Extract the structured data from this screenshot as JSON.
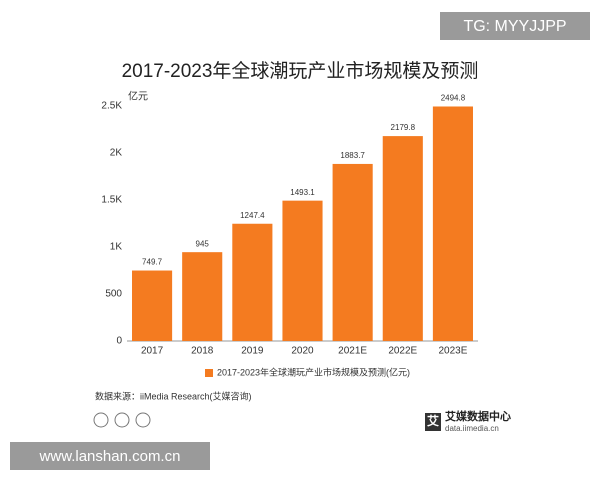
{
  "chart_data": {
    "type": "bar",
    "title": "2017-2023年全球潮玩产业市场规模及预测",
    "y_unit": "亿元",
    "categories": [
      "2017",
      "2018",
      "2019",
      "2020",
      "2021E",
      "2022E",
      "2023E"
    ],
    "series": [
      {
        "name": "2017-2023年全球潮玩产业市场规模及预测(亿元)",
        "color": "#f47b20",
        "values": [
          749.7,
          945,
          1247.4,
          1493.1,
          1883.7,
          2179.8,
          2494.8
        ]
      }
    ],
    "ylim": [
      0,
      2500
    ],
    "yticks": [
      0,
      500,
      {
        "value": 1000,
        "label": "1K"
      },
      {
        "value": 1500,
        "label": "1.5K"
      },
      {
        "value": 2000,
        "label": "2K"
      },
      {
        "value": 2500,
        "label": "2.5K"
      }
    ],
    "grid": false,
    "source": "数据来源：iiMedia Research(艾媒咨询)",
    "logo": {
      "icon": "艾",
      "name": "艾媒数据中心",
      "url": "data.iimedia.cn"
    }
  },
  "watermarks": {
    "top": "TG: MYYJJPP",
    "bottom": "www.lanshan.com.cn"
  }
}
